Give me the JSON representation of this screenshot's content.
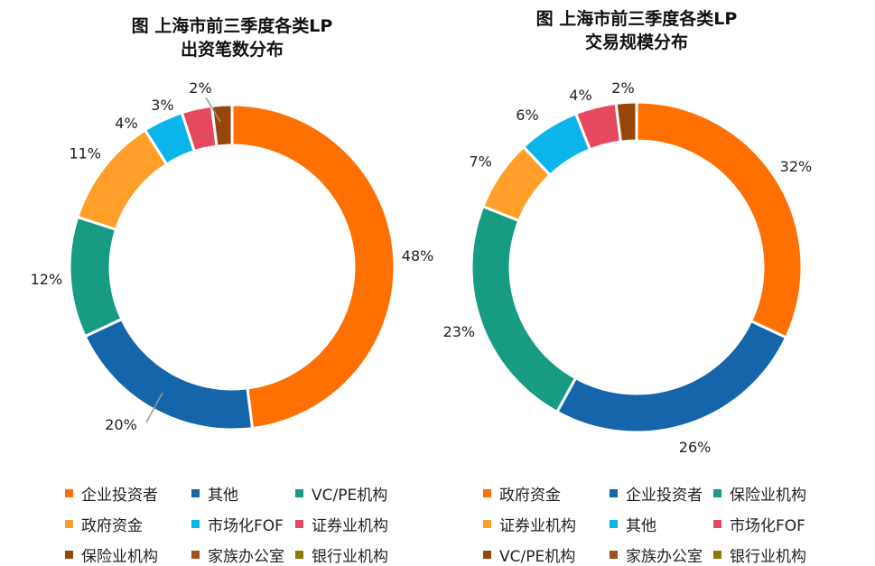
{
  "chart_data": [
    {
      "type": "pie",
      "title": "图 上海市前三季度各类LP 出资笔数分布",
      "title_lines": [
        "图 上海市前三季度各类LP",
        "出资笔数分布"
      ],
      "categories": [
        "企业投资者",
        "其他",
        "VC/PE机构",
        "政府资金",
        "市场化FOF",
        "证券业机构",
        "保险业机构",
        "家族办公室",
        "银行业机构"
      ],
      "values": [
        48,
        20,
        12,
        11,
        4,
        3,
        2,
        0,
        0
      ],
      "labels": [
        "48%",
        "20%",
        "12%",
        "11%",
        "4%",
        "3%",
        "2%"
      ],
      "colors": [
        "#FF7000",
        "#1565AA",
        "#179B82",
        "#FF9F2A",
        "#0BB5EC",
        "#E5495F",
        "#974609",
        "#A0521E",
        "#8C7A06"
      ],
      "legend": "bottom"
    },
    {
      "type": "pie",
      "title": "图 上海市前三季度各类LP 交易规模分布",
      "title_lines": [
        "图 上海市前三季度各类LP",
        "交易规模分布"
      ],
      "categories": [
        "政府资金",
        "企业投资者",
        "保险业机构",
        "证券业机构",
        "其他",
        "市场化FOF",
        "VC/PE机构",
        "家族办公室",
        "银行业机构"
      ],
      "values": [
        32,
        26,
        23,
        7,
        6,
        4,
        2,
        0,
        0
      ],
      "labels": [
        "32%",
        "26%",
        "23%",
        "7%",
        "6%",
        "4%",
        "2%"
      ],
      "colors": [
        "#FF7000",
        "#1565AA",
        "#179B82",
        "#FF9F2A",
        "#0BB5EC",
        "#E5495F",
        "#974609",
        "#A0521E",
        "#8C7A06"
      ],
      "legend": "bottom"
    }
  ]
}
